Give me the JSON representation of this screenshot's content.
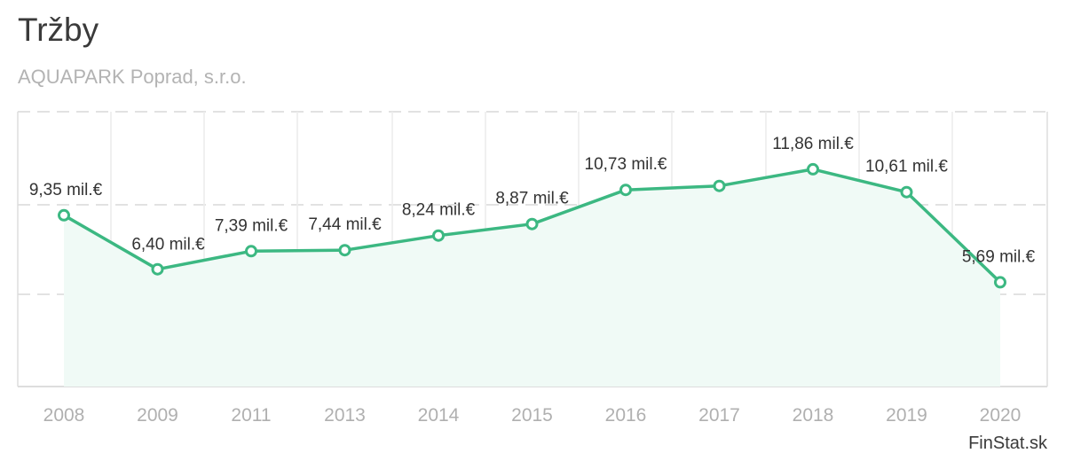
{
  "title": "Tržby",
  "subtitle": "AQUAPARK Poprad, s.r.o.",
  "source": "FinStat.sk",
  "colors": {
    "line": "#3cb882",
    "area": "#f0faf6",
    "grid": "#e2e2e2",
    "axis": "#dddddd"
  },
  "chart_data": {
    "type": "area",
    "categories": [
      "2008",
      "2009",
      "2011",
      "2013",
      "2014",
      "2015",
      "2016",
      "2017",
      "2018",
      "2019",
      "2020"
    ],
    "values": [
      9.35,
      6.4,
      7.39,
      7.44,
      8.24,
      8.87,
      10.73,
      10.95,
      11.86,
      10.61,
      5.69
    ],
    "labels": [
      "9,35 mil.€",
      "6,40 mil.€",
      "7,39 mil.€",
      "7,44 mil.€",
      "8,24 mil.€",
      "8,87 mil.€",
      "10,73 mil.€",
      "",
      "11,86 mil.€",
      "10,61 mil.€",
      "5,69 mil.€"
    ],
    "title": "Tržby",
    "subtitle": "AQUAPARK Poprad, s.r.o.",
    "xlabel": "",
    "ylabel": "",
    "unit": "mil.€",
    "ylim": [
      0,
      15
    ],
    "grid": true,
    "legend": "none"
  }
}
